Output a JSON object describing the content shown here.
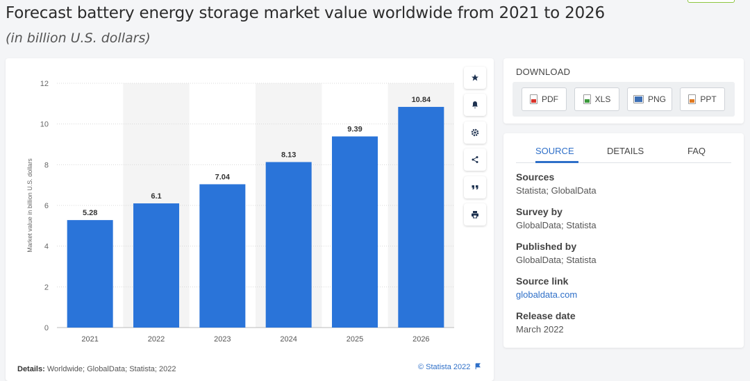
{
  "header": {
    "title": "Forecast battery energy storage market value worldwide from 2021 to 2026",
    "subtitle": "(in billion U.S. dollars)"
  },
  "chart_data": {
    "type": "bar",
    "categories": [
      "2021",
      "2022",
      "2023",
      "2024",
      "2025",
      "2026"
    ],
    "values": [
      5.28,
      6.1,
      7.04,
      8.13,
      9.39,
      10.84
    ],
    "value_labels": [
      "5.28",
      "6.1",
      "7.04",
      "8.13",
      "9.39",
      "10.84"
    ],
    "ylabel": "Market value in billion U.S. dollars",
    "ylim": [
      0,
      12
    ],
    "yticks": [
      "0",
      "2",
      "4",
      "6",
      "8",
      "10",
      "12"
    ],
    "grid": true,
    "bar_color": "#2a74d9"
  },
  "toolbar": {
    "icons": [
      "star-icon",
      "bell-icon",
      "gear-icon",
      "share-icon",
      "quote-icon",
      "print-icon"
    ]
  },
  "footer": {
    "details_label": "Details:",
    "details_text": "Worldwide; GlobalData; Statista; 2022",
    "copyright": "© Statista 2022"
  },
  "download": {
    "title": "DOWNLOAD",
    "buttons": [
      {
        "label": "PDF",
        "color": "#d9342b"
      },
      {
        "label": "XLS",
        "color": "#3c9a3c"
      },
      {
        "label": "PNG",
        "color": "#3d6fb5"
      },
      {
        "label": "PPT",
        "color": "#e07a22"
      }
    ]
  },
  "info": {
    "tabs": [
      "SOURCE",
      "DETAILS",
      "FAQ"
    ],
    "active_tab": "SOURCE",
    "sources_label": "Sources",
    "sources_value": "Statista; GlobalData",
    "survey_label": "Survey by",
    "survey_value": "GlobalData; Statista",
    "published_label": "Published by",
    "published_value": "GlobalData; Statista",
    "link_label": "Source link",
    "link_value": "globaldata.com",
    "release_label": "Release date",
    "release_value": "March 2022"
  },
  "colors": {
    "accent": "#2e6fc8",
    "bar": "#2a74d9"
  }
}
